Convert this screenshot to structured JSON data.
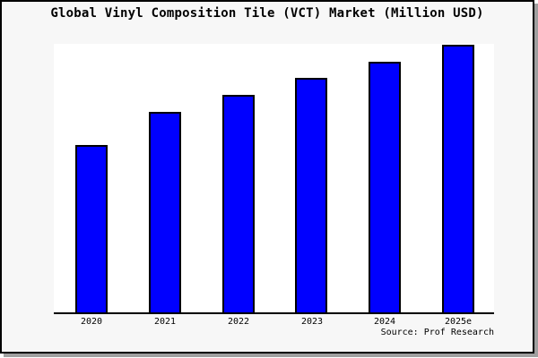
{
  "chart_data": {
    "type": "bar",
    "title": "Global Vinyl Composition Tile (VCT) Market (Million USD)",
    "categories": [
      "2020",
      "2021",
      "2022",
      "2023",
      "2024",
      "2025e"
    ],
    "values": [
      189,
      226,
      245,
      264,
      282,
      301
    ],
    "value_scale_note": "chart shows no y-axis ticks or data labels; values are relative bar heights in pixels above the baseline",
    "xlabel": "",
    "ylabel": "",
    "legend": "none",
    "gridlines": false,
    "y_axis_visible": false,
    "source": "Source: Prof Research",
    "colors": {
      "bar_fill": "#0000ff",
      "bar_border": "#000000",
      "plot_background": "#ffffff",
      "canvas_background": "#f7f7f7",
      "frame_border": "#000000",
      "frame_shadow": "#a0a0a0",
      "axis_line": "#000000",
      "text": "#000000"
    }
  }
}
